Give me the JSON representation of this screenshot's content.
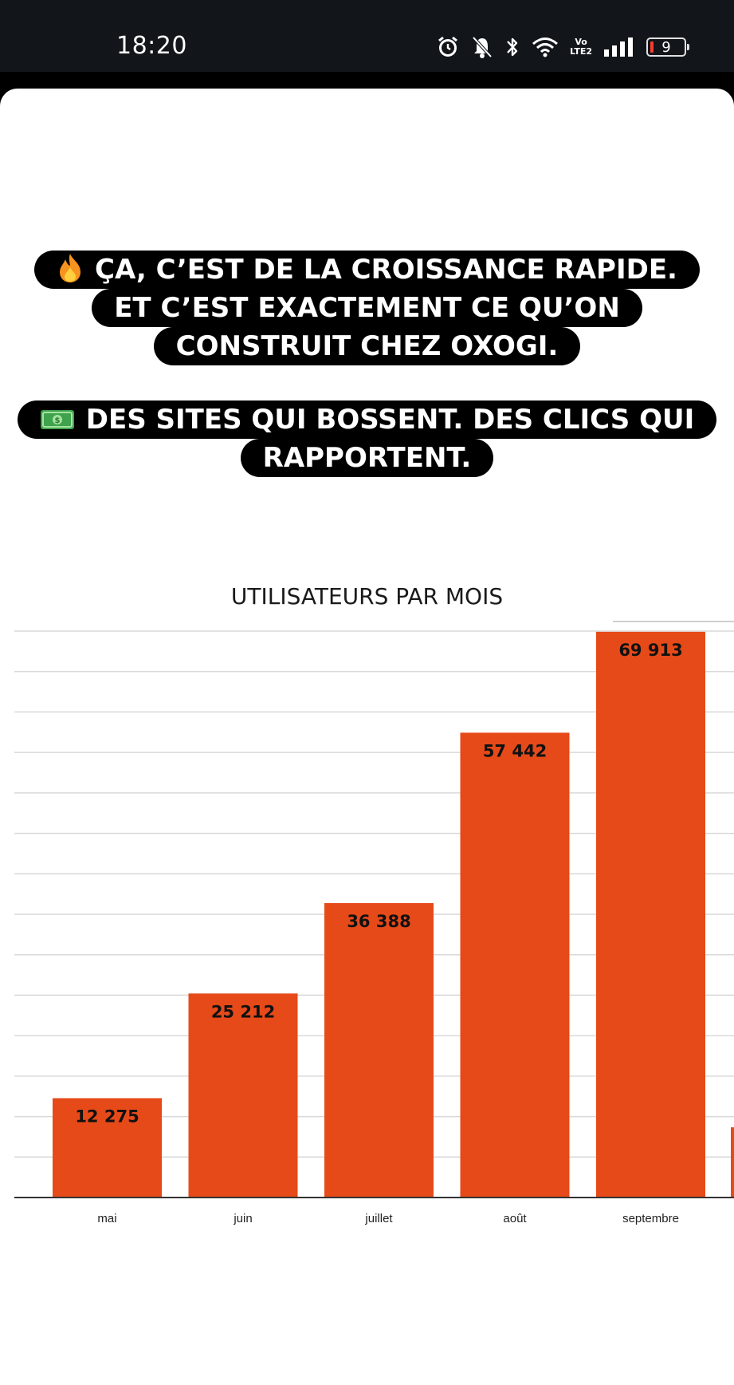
{
  "status_bar": {
    "time": "18:20",
    "volte_top": "Vo",
    "volte_bottom": "LTE2",
    "battery": "9",
    "icons": [
      "alarm-icon",
      "mute-icon",
      "bluetooth-icon",
      "wifi-icon",
      "volte-icon",
      "signal-icon",
      "battery-icon"
    ]
  },
  "captions": {
    "block1": [
      "ÇA, C’EST DE LA CROISSANCE RAPIDE.",
      "ET C’EST EXACTEMENT CE QU’ON",
      "CONSTRUIT CHEZ OXOGI."
    ],
    "block2": [
      "DES SITES QUI BOSSENT. DES CLICS QUI",
      "RAPPORTENT."
    ],
    "emoji1": "fire-icon",
    "emoji2": "dollar-banknote-icon"
  },
  "colors": {
    "bar": "#e64a19",
    "grid": "#d9d9d9",
    "pill": "#000000"
  },
  "chart_data": {
    "type": "bar",
    "title": "UTILISATEURS PAR MOIS",
    "categories": [
      "mai",
      "juin",
      "juillet",
      "août",
      "septembre"
    ],
    "values": [
      12275,
      25212,
      36388,
      57442,
      69913
    ],
    "value_labels": [
      "12 275",
      "25 212",
      "36 388",
      "57 442",
      "69 913"
    ],
    "ylim": [
      0,
      70000
    ],
    "grid": true,
    "xlabel": "",
    "ylabel": ""
  }
}
